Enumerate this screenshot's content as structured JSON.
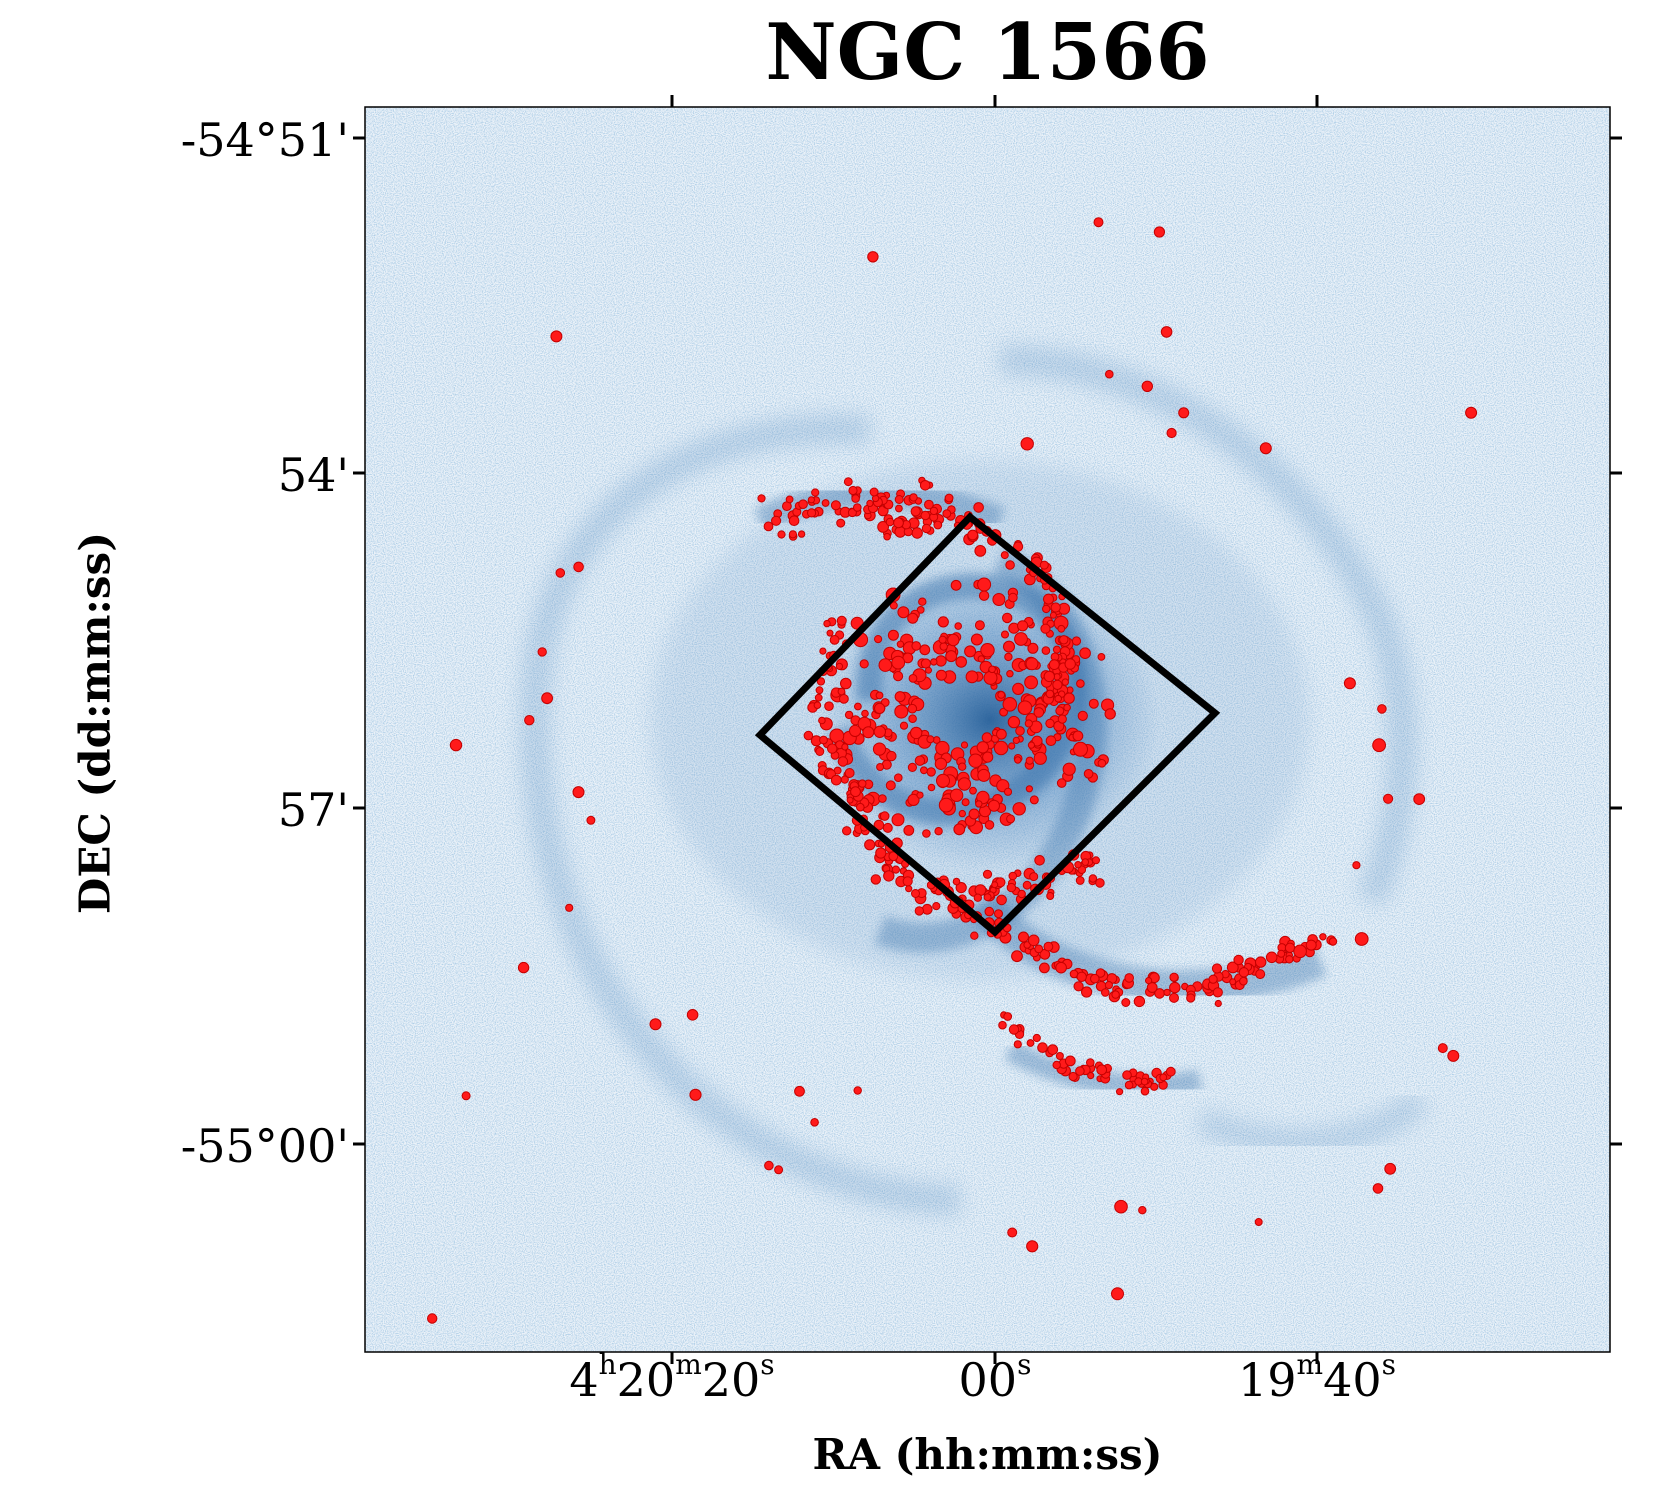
{
  "image": {
    "title": "NGC 1566",
    "x_axis": {
      "label": "RA (hh:mm:ss)",
      "ticks": [
        {
          "h": "4",
          "hs": "h",
          "m": "20",
          "ms": "m",
          "s": "20",
          "ss": "s"
        },
        {
          "h": "",
          "hs": "",
          "m": "",
          "ms": "",
          "s": "00",
          "ss": "s"
        },
        {
          "h": "",
          "hs": "",
          "m": "19",
          "ms": "m",
          "s": "40",
          "ss": "s"
        }
      ]
    },
    "y_axis": {
      "label": "DEC (dd:mm:ss)",
      "ticks": [
        "-54°51'",
        "54'",
        "57'",
        "-55°00'"
      ]
    },
    "colors": {
      "background_sky": "#e8f0f8",
      "galaxy_emission": "#1f5a96",
      "source_markers": "#ff1010",
      "footprint_outline": "#000000"
    },
    "content": "Blue-scale sky image of a two-armed spiral galaxy with many red circular source markers concentrated along the spiral arms and a black square footprint outline rotated about 45 degrees over the galaxy centre"
  }
}
